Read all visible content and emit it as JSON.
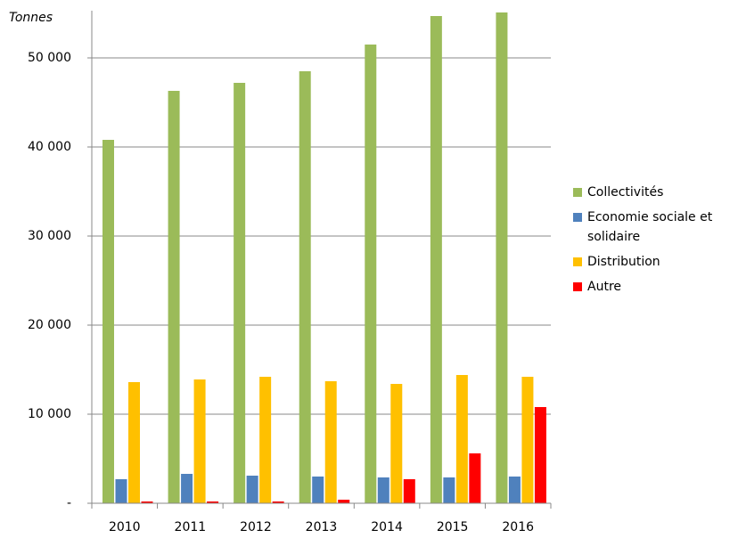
{
  "chart_data": {
    "type": "bar",
    "y_label": "Tonnes",
    "categories": [
      "2010",
      "2011",
      "2012",
      "2013",
      "2014",
      "2015",
      "2016"
    ],
    "series": [
      {
        "name": "Collectivités",
        "color": "#9bbb59",
        "values": [
          40800,
          46300,
          47200,
          48500,
          51500,
          54700,
          55100
        ]
      },
      {
        "name": "Economie sociale et solidaire",
        "color": "#4f81bd",
        "values": [
          2700,
          3300,
          3100,
          3000,
          2900,
          2900,
          3000
        ]
      },
      {
        "name": "Distribution",
        "color": "#ffc000",
        "values": [
          13600,
          13900,
          14200,
          13700,
          13400,
          14400,
          14200
        ]
      },
      {
        "name": "Autre",
        "color": "#ff0000",
        "values": [
          200,
          200,
          200,
          400,
          2700,
          5600,
          10800
        ]
      }
    ],
    "ylim": [
      0,
      55300
    ],
    "yticks": [
      {
        "value": 0,
        "label": "-"
      },
      {
        "value": 10000,
        "label": "10 000"
      },
      {
        "value": 20000,
        "label": "20 000"
      },
      {
        "value": 30000,
        "label": "30 000"
      },
      {
        "value": 40000,
        "label": "40 000"
      },
      {
        "value": 50000,
        "label": "50 000"
      }
    ],
    "grid": true,
    "legend": "right"
  }
}
